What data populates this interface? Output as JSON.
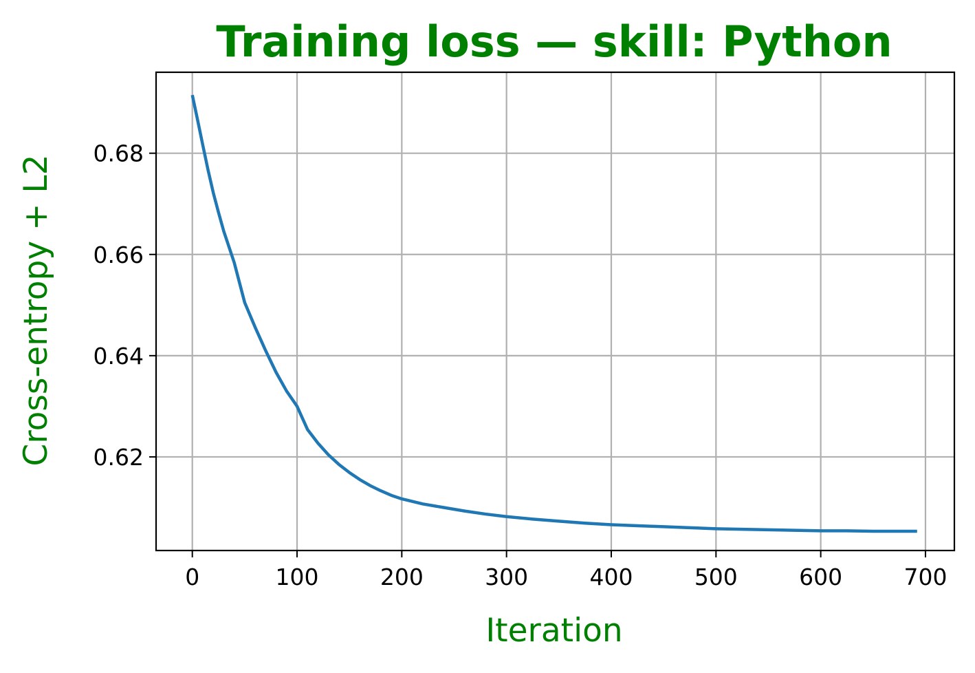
{
  "chart_data": {
    "type": "line",
    "title": "Training loss — skill: Python",
    "xlabel": "Iteration",
    "ylabel": "Cross-entropy + L2",
    "title_color": "#008000",
    "label_color": "#008000",
    "line_color": "#1f77b4",
    "grid": true,
    "grid_color": "#b0b0b0",
    "xlim": [
      -34.6,
      727.6
    ],
    "ylim": [
      0.6015,
      0.696
    ],
    "xticks": [
      0,
      100,
      200,
      300,
      400,
      500,
      600,
      700
    ],
    "yticks": [
      0.62,
      0.64,
      0.66,
      0.68
    ],
    "xtick_labels": [
      "0",
      "100",
      "200",
      "300",
      "400",
      "500",
      "600",
      "700"
    ],
    "ytick_labels": [
      "0.62",
      "0.64",
      "0.66",
      "0.68"
    ],
    "series": [
      {
        "x": [
          0,
          5,
          10,
          15,
          20,
          25,
          30,
          40,
          50,
          60,
          70,
          80,
          90,
          100,
          110,
          120,
          130,
          140,
          150,
          160,
          170,
          180,
          190,
          200,
          220,
          240,
          260,
          280,
          300,
          325,
          350,
          375,
          400,
          425,
          450,
          475,
          500,
          525,
          550,
          575,
          600,
          625,
          650,
          675,
          692
        ],
        "y": [
          0.6915,
          0.6866,
          0.6816,
          0.6767,
          0.6722,
          0.6683,
          0.6646,
          0.6584,
          0.6505,
          0.6456,
          0.641,
          0.6367,
          0.633,
          0.63,
          0.6254,
          0.6227,
          0.6204,
          0.6185,
          0.6169,
          0.6155,
          0.6143,
          0.6133,
          0.6124,
          0.6117,
          0.6107,
          0.61,
          0.6093,
          0.6087,
          0.6082,
          0.6077,
          0.6073,
          0.6069,
          0.6066,
          0.6064,
          0.6062,
          0.606,
          0.6058,
          0.6057,
          0.6056,
          0.6055,
          0.6054,
          0.6054,
          0.6053,
          0.6053,
          0.6053
        ]
      }
    ]
  }
}
